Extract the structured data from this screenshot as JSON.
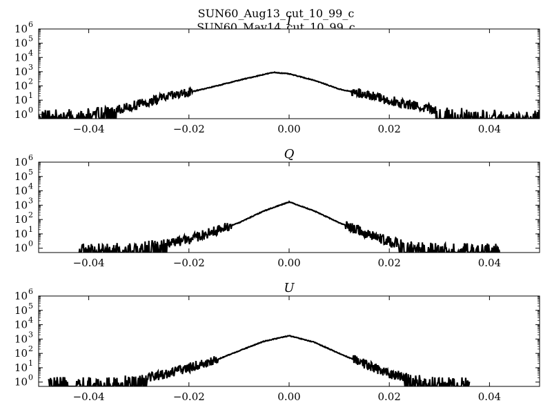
{
  "figure": {
    "title_lines": [
      "SUN60_Aug13_cut_10_99_c",
      "SUN60_May14_cut_10_99_c"
    ]
  },
  "colors": {
    "line": "#000000",
    "axes": "#000000",
    "background": "#ffffff"
  },
  "chart_data": [
    {
      "type": "line",
      "title": "I",
      "xlabel": "",
      "ylabel": "",
      "xlim": [
        -0.05,
        0.05
      ],
      "ylim": [
        0.5,
        1000000
      ],
      "yscale": "log",
      "grid": false,
      "x_ticks": [
        "−0.04",
        "−0.02",
        "0.00",
        "0.02",
        "0.04"
      ],
      "x_tick_values": [
        -0.04,
        -0.02,
        0.0,
        0.02,
        0.04
      ],
      "y_tick_base": "10",
      "y_tick_exponents": [
        "0",
        "1",
        "2",
        "3",
        "4",
        "5",
        "6"
      ],
      "series": [
        {
          "x": [
            -0.05,
            -0.045,
            -0.04,
            -0.035,
            -0.03,
            -0.025,
            -0.02,
            -0.015,
            -0.01,
            -0.005,
            -0.003,
            0.0,
            0.005,
            0.01,
            0.015,
            0.02,
            0.025,
            0.03,
            0.035,
            0.04,
            0.045,
            0.05
          ],
          "values": [
            1,
            1,
            1.2,
            2,
            5,
            15,
            35,
            90,
            250,
            650,
            900,
            700,
            250,
            60,
            25,
            10,
            4,
            2,
            1.2,
            1,
            1,
            1
          ]
        }
      ]
    },
    {
      "type": "line",
      "title": "Q",
      "xlabel": "",
      "ylabel": "",
      "xlim": [
        -0.05,
        0.05
      ],
      "ylim": [
        0.5,
        1000000
      ],
      "yscale": "log",
      "grid": false,
      "x_ticks": [
        "−0.04",
        "−0.02",
        "0.00",
        "0.02",
        "0.04"
      ],
      "x_tick_values": [
        -0.04,
        -0.02,
        0.0,
        0.02,
        0.04
      ],
      "y_tick_base": "10",
      "y_tick_exponents": [
        "0",
        "1",
        "2",
        "3",
        "4",
        "5",
        "6"
      ],
      "series": [
        {
          "x": [
            -0.042,
            -0.035,
            -0.03,
            -0.025,
            -0.02,
            -0.015,
            -0.01,
            -0.005,
            0.0,
            0.005,
            0.01,
            0.015,
            0.02,
            0.025,
            0.03,
            0.035,
            0.042
          ],
          "values": [
            1,
            1,
            1.3,
            2,
            4,
            15,
            60,
            400,
            1700,
            400,
            60,
            12,
            3,
            1.3,
            1,
            1,
            1
          ]
        }
      ]
    },
    {
      "type": "line",
      "title": "U",
      "xlabel": "",
      "ylabel": "",
      "xlim": [
        -0.05,
        0.05
      ],
      "ylim": [
        0.5,
        1000000
      ],
      "yscale": "log",
      "grid": false,
      "x_ticks": [
        "−0.04",
        "−0.02",
        "0.00",
        "0.02",
        "0.04"
      ],
      "x_tick_values": [
        -0.04,
        -0.02,
        0.0,
        0.02,
        0.04
      ],
      "y_tick_base": "10",
      "y_tick_exponents": [
        "0",
        "1",
        "2",
        "3",
        "4",
        "5",
        "6"
      ],
      "series": [
        {
          "x": [
            -0.048,
            -0.04,
            -0.035,
            -0.03,
            -0.025,
            -0.02,
            -0.015,
            -0.01,
            -0.005,
            0.0,
            0.005,
            0.01,
            0.015,
            0.02,
            0.025,
            0.03,
            0.036
          ],
          "values": [
            1,
            1,
            1.2,
            1.8,
            3.5,
            10,
            30,
            150,
            700,
            1700,
            600,
            100,
            18,
            4,
            1.5,
            1,
            1
          ]
        }
      ]
    }
  ]
}
